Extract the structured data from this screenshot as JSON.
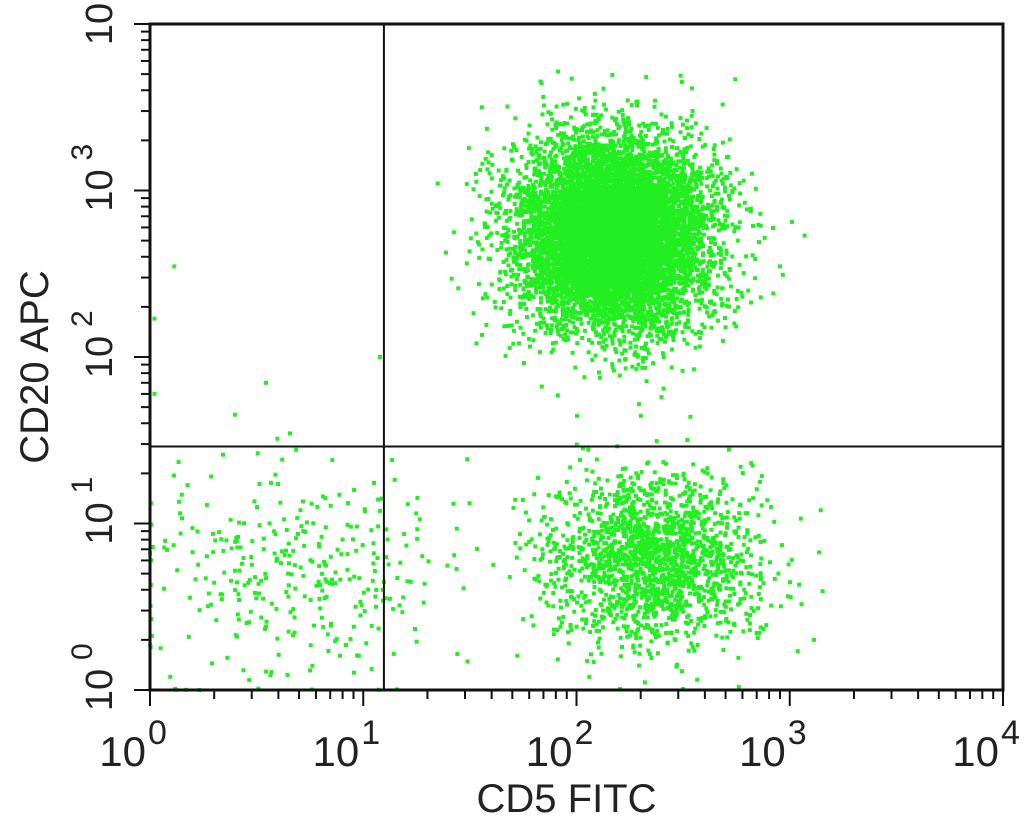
{
  "chart_data": {
    "type": "scatter",
    "title": "",
    "xlabel": "CD5 FITC",
    "ylabel": "CD20 APC",
    "x_scale": "log",
    "y_scale": "log",
    "xlim": [
      1,
      10000
    ],
    "ylim": [
      1,
      10000
    ],
    "x_ticks": [
      1,
      10,
      100,
      1000,
      10000
    ],
    "y_ticks": [
      1,
      10,
      100,
      1000,
      10000
    ],
    "x_tick_labels": [
      {
        "base": "10",
        "exp": "0"
      },
      {
        "base": "10",
        "exp": "1"
      },
      {
        "base": "10",
        "exp": "2"
      },
      {
        "base": "10",
        "exp": "3"
      },
      {
        "base": "10",
        "exp": "4"
      }
    ],
    "y_tick_labels": [
      {
        "base": "10",
        "exp": "0"
      },
      {
        "base": "10",
        "exp": "1"
      },
      {
        "base": "10",
        "exp": "2"
      },
      {
        "base": "10",
        "exp": "3"
      },
      {
        "base": "10",
        "exp": "4"
      }
    ],
    "quadrant_gate": {
      "x": 12.5,
      "y": 29
    },
    "point_color": "#22ee22",
    "grid": false,
    "legend": "none",
    "clusters": [
      {
        "name": "",
        "center_x": 150,
        "center_y": 550,
        "spread_log_x": 0.22,
        "spread_log_y": 0.28,
        "count": 9000
      },
      {
        "name": "",
        "center_x": 230,
        "center_y": 6,
        "spread_log_x": 0.25,
        "spread_log_y": 0.25,
        "count": 1800
      },
      {
        "name": "",
        "center_x": 5,
        "center_y": 5,
        "spread_log_x": 0.35,
        "spread_log_y": 0.33,
        "count": 320
      }
    ],
    "sample_points": [
      {
        "x": 1.3,
        "y": 350
      },
      {
        "x": 2.5,
        "y": 45
      },
      {
        "x": 3.5,
        "y": 70
      },
      {
        "x": 1.05,
        "y": 170
      },
      {
        "x": 1.05,
        "y": 60
      },
      {
        "x": 500,
        "y": 3.4
      },
      {
        "x": 700,
        "y": 2.2
      },
      {
        "x": 900,
        "y": 350
      },
      {
        "x": 1300,
        "y": 2
      },
      {
        "x": 1.5,
        "y": 17
      },
      {
        "x": 8,
        "y": 8
      },
      {
        "x": 12,
        "y": 100
      }
    ]
  }
}
